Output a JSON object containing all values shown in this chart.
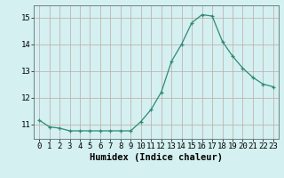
{
  "x": [
    0,
    1,
    2,
    3,
    4,
    5,
    6,
    7,
    8,
    9,
    10,
    11,
    12,
    13,
    14,
    15,
    16,
    17,
    18,
    19,
    20,
    21,
    22,
    23
  ],
  "y": [
    11.15,
    10.9,
    10.85,
    10.75,
    10.75,
    10.75,
    10.75,
    10.75,
    10.75,
    10.75,
    11.1,
    11.55,
    12.2,
    13.35,
    14.0,
    14.8,
    15.1,
    15.05,
    14.1,
    13.55,
    13.1,
    12.75,
    12.5,
    12.4
  ],
  "line_color": "#2e8b72",
  "marker": "+",
  "bg_color": "#d4f0f0",
  "grid_major_color": "#c0a8a8",
  "grid_minor_color": "#ddc8c8",
  "xlabel": "Humidex (Indice chaleur)",
  "yticks": [
    11,
    12,
    13,
    14,
    15
  ],
  "xtick_labels": [
    "0",
    "1",
    "2",
    "3",
    "4",
    "5",
    "6",
    "7",
    "8",
    "9",
    "10",
    "11",
    "12",
    "13",
    "14",
    "15",
    "16",
    "17",
    "18",
    "19",
    "20",
    "21",
    "22",
    "23"
  ],
  "ylim": [
    10.45,
    15.45
  ],
  "xlim": [
    -0.5,
    23.5
  ],
  "xlabel_fontsize": 7.5,
  "tick_fontsize": 6.5,
  "font_family": "monospace"
}
